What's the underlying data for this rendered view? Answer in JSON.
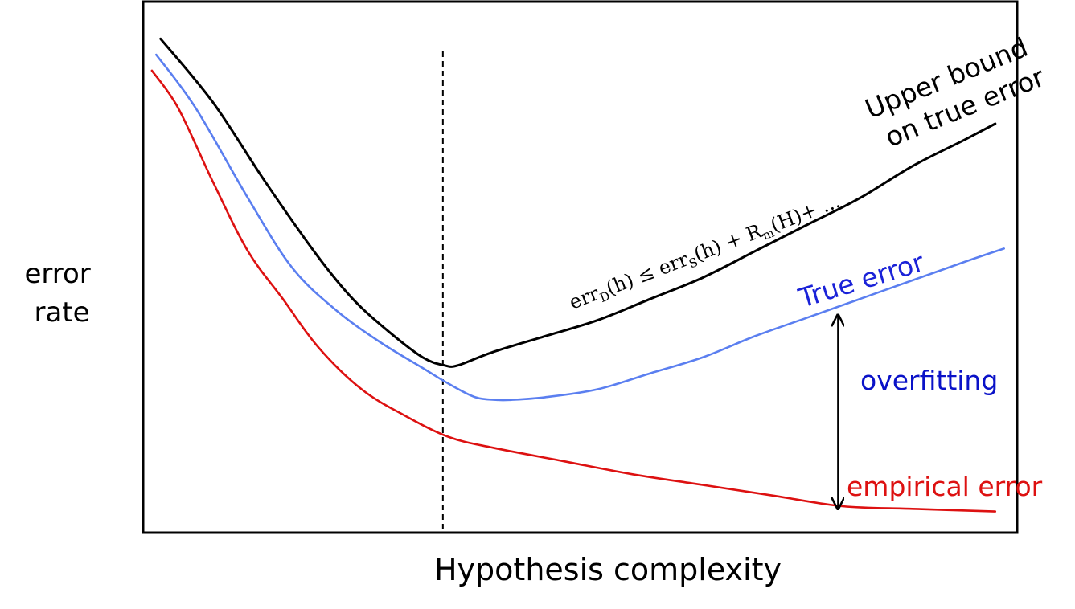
{
  "chart_data": {
    "type": "line",
    "title": "",
    "xlabel": "Hypothesis complexity",
    "ylabel_lines": [
      "error",
      "rate"
    ],
    "xlim": [
      0,
      100
    ],
    "ylim": [
      0,
      100
    ],
    "ticks": "none",
    "grid": false,
    "series": [
      {
        "name": "Upper bound on true error",
        "label_lines": [
          "Upper bound",
          "on true error"
        ],
        "color": "#000000",
        "x": [
          2,
          8,
          14,
          20,
          24,
          28,
          32,
          34.5,
          36,
          40,
          46,
          52,
          58,
          64,
          70,
          76,
          82,
          88,
          94,
          97.5
        ],
        "y": [
          93,
          81,
          66,
          52,
          44,
          38,
          33,
          31.5,
          31.5,
          34,
          37,
          40,
          44,
          48,
          53,
          58,
          63,
          69,
          74,
          77
        ]
      },
      {
        "name": "True error",
        "label_lines": [
          "True error"
        ],
        "color": "#5b7ff0",
        "x": [
          1.5,
          6,
          12,
          17,
          22,
          27,
          32,
          35,
          38,
          40.5,
          42,
          46,
          52,
          58,
          64,
          70,
          76,
          82,
          88,
          94,
          98.5
        ],
        "y": [
          90,
          80,
          63,
          50,
          42,
          36,
          31,
          28,
          25.5,
          25,
          25,
          25.5,
          27,
          30,
          33,
          37,
          40.5,
          44,
          47.5,
          51,
          53.5
        ]
      },
      {
        "name": "empirical error",
        "label_lines": [
          "empirical error"
        ],
        "color": "#dd1111",
        "x": [
          1,
          4,
          8,
          12,
          16,
          20,
          25,
          30,
          35,
          40,
          48,
          56,
          64,
          72,
          80,
          88,
          97.5
        ],
        "y": [
          87,
          80,
          66,
          53,
          44,
          35,
          27,
          22,
          18,
          16,
          13.5,
          11,
          9,
          7,
          5,
          4.5,
          4
        ]
      }
    ],
    "optimum_marker": {
      "x": 34.3,
      "style": "dashed vertical line"
    },
    "gap_arrow": {
      "x": 79.5,
      "y_top": 41,
      "y_bottom": 4.5
    },
    "annotations": {
      "bound_formula": {
        "err": "err",
        "sub_D": "D",
        "h1": "(h) ≤ err",
        "sub_S": "S",
        "h2": "(h) + R",
        "sub_m": "m",
        "tail": "(H)+ ..."
      },
      "true_error_label": "True error",
      "overfitting_label": "overfitting",
      "empirical_label": "empirical error"
    },
    "colors": {
      "upper_bound": "#000000",
      "true_error": "#5b7ff0",
      "true_error_text": "#1a22d8",
      "overfitting_text": "#0a12c8",
      "empirical": "#dd1111"
    }
  }
}
